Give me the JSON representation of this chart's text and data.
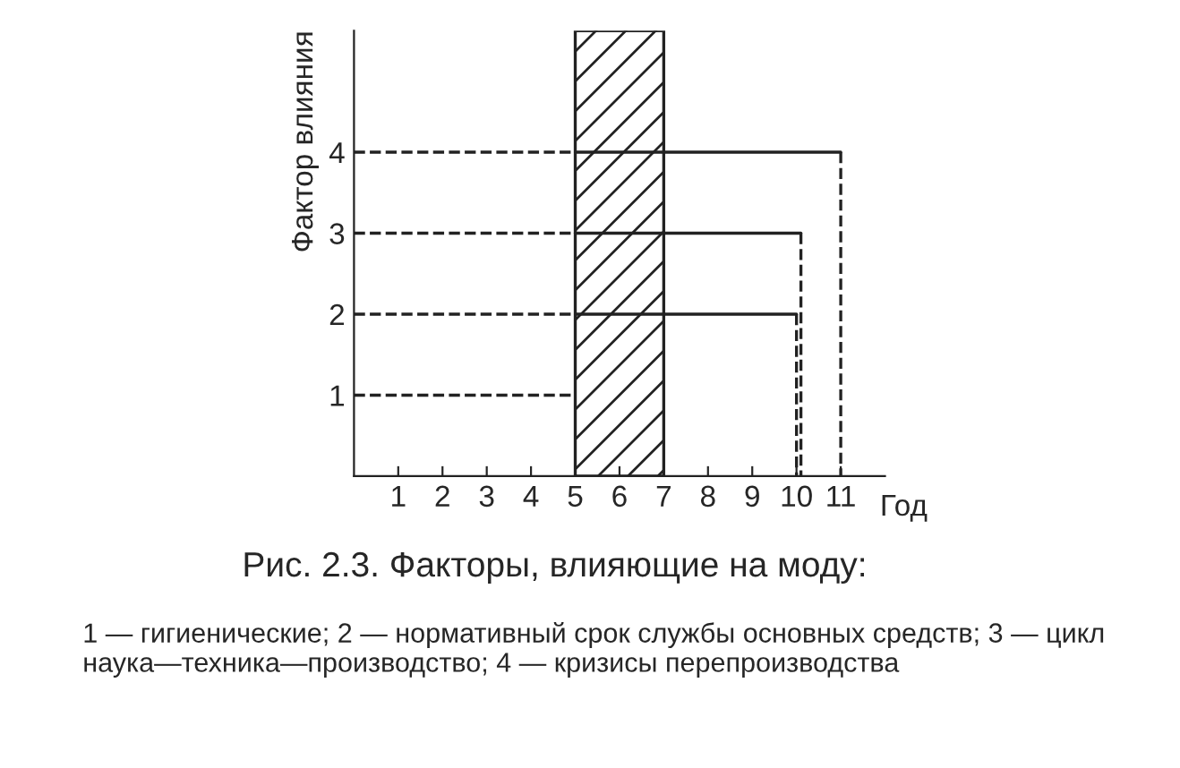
{
  "chart_data": {
    "type": "line",
    "title": "Рис. 2.3. Факторы, влияющие на моду:",
    "xlabel": "Год",
    "ylabel": "Фактор влияния",
    "series": [
      {
        "color": "#222222",
        "line_style": "dashed",
        "x": [
          0,
          5
        ],
        "values": [
          1,
          1
        ]
      },
      {
        "color": "#222222",
        "line_style": "dashed",
        "x": [
          0,
          5
        ],
        "values": [
          2,
          2
        ]
      },
      {
        "color": "#222222",
        "line_style": "solid",
        "x": [
          5,
          10
        ],
        "values": [
          2,
          2
        ]
      },
      {
        "color": "#222222",
        "line_style": "dashed",
        "x": [
          10,
          10
        ],
        "values": [
          2,
          0
        ]
      },
      {
        "color": "#222222",
        "line_style": "dashed",
        "x": [
          0,
          5
        ],
        "values": [
          3,
          3
        ]
      },
      {
        "color": "#222222",
        "line_style": "solid",
        "x": [
          5,
          10.1
        ],
        "values": [
          3,
          3
        ]
      },
      {
        "color": "#222222",
        "line_style": "dashed",
        "x": [
          10.1,
          10.1
        ],
        "values": [
          3,
          0
        ]
      },
      {
        "color": "#222222",
        "line_style": "dashed",
        "x": [
          0,
          5
        ],
        "values": [
          4,
          4
        ]
      },
      {
        "color": "#222222",
        "line_style": "solid",
        "x": [
          5,
          11
        ],
        "values": [
          4,
          4
        ]
      },
      {
        "color": "#222222",
        "line_style": "dashed",
        "x": [
          11,
          11
        ],
        "values": [
          4,
          0
        ]
      }
    ],
    "bands": [
      {
        "axis": "x",
        "from": 5,
        "to": 7,
        "color": "#222222"
      }
    ],
    "xlim": [
      0,
      12
    ],
    "ylim": [
      0,
      5.5
    ],
    "xticks": [
      1,
      2,
      3,
      4,
      5,
      6,
      7,
      8,
      9,
      10,
      11
    ],
    "yticks": [
      1,
      2,
      3,
      4
    ],
    "grid": false,
    "legend": false,
    "marker": "none",
    "annotations": [
      "1 — гигиенические; 2 — нормативный срок службы основных средств; 3 — цикл наука—техника—производство; 4 — кризисы перепроизводства"
    ]
  }
}
